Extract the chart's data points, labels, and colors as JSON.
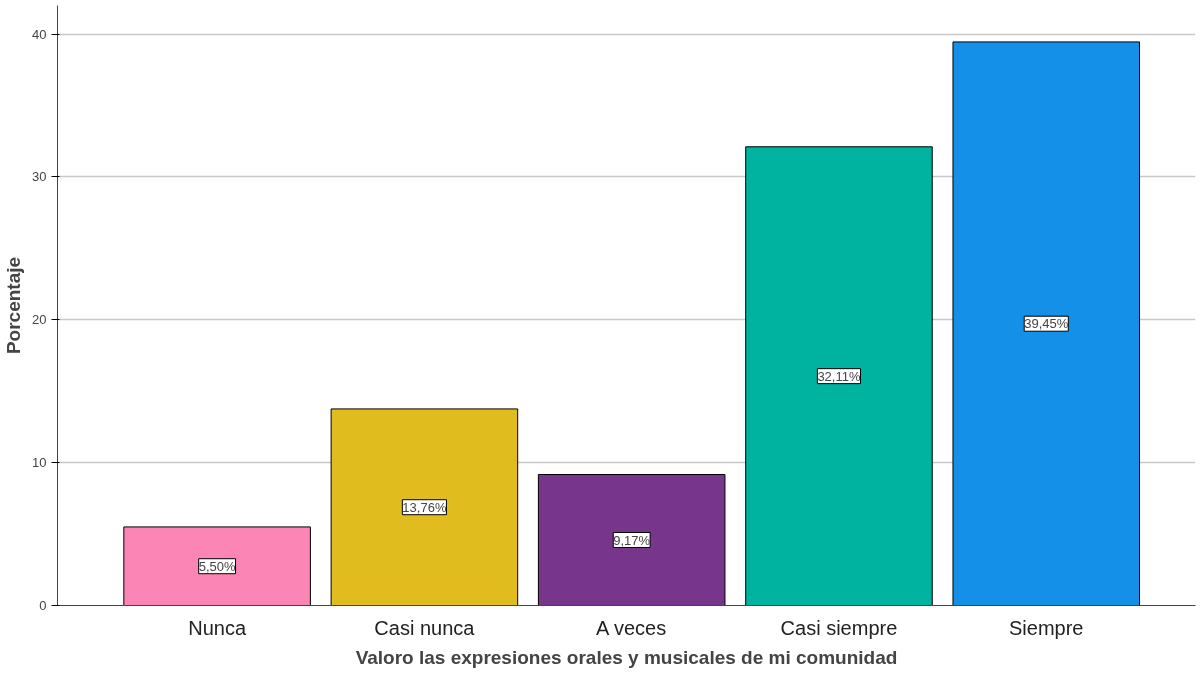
{
  "chart_data": {
    "type": "bar",
    "xlabel": "Valoro las expresiones orales y musicales de mi comunidad",
    "ylabel": "Porcentaje",
    "categories": [
      "Nunca",
      "Casi nunca",
      "A veces",
      "Casi siempre",
      "Siempre"
    ],
    "values": [
      5.5,
      13.76,
      9.17,
      32.11,
      39.45
    ],
    "colors": [
      "#fb85b5",
      "#e0bc1e",
      "#78358c",
      "#00b2a0",
      "#1490e8"
    ],
    "value_labels": [
      "5,50%",
      "13,76%",
      "9,17%",
      "32,11%",
      "39,45%"
    ],
    "ylim": [
      0,
      42
    ],
    "yticks": [
      0,
      10,
      20,
      30,
      40
    ],
    "grid": "y"
  }
}
